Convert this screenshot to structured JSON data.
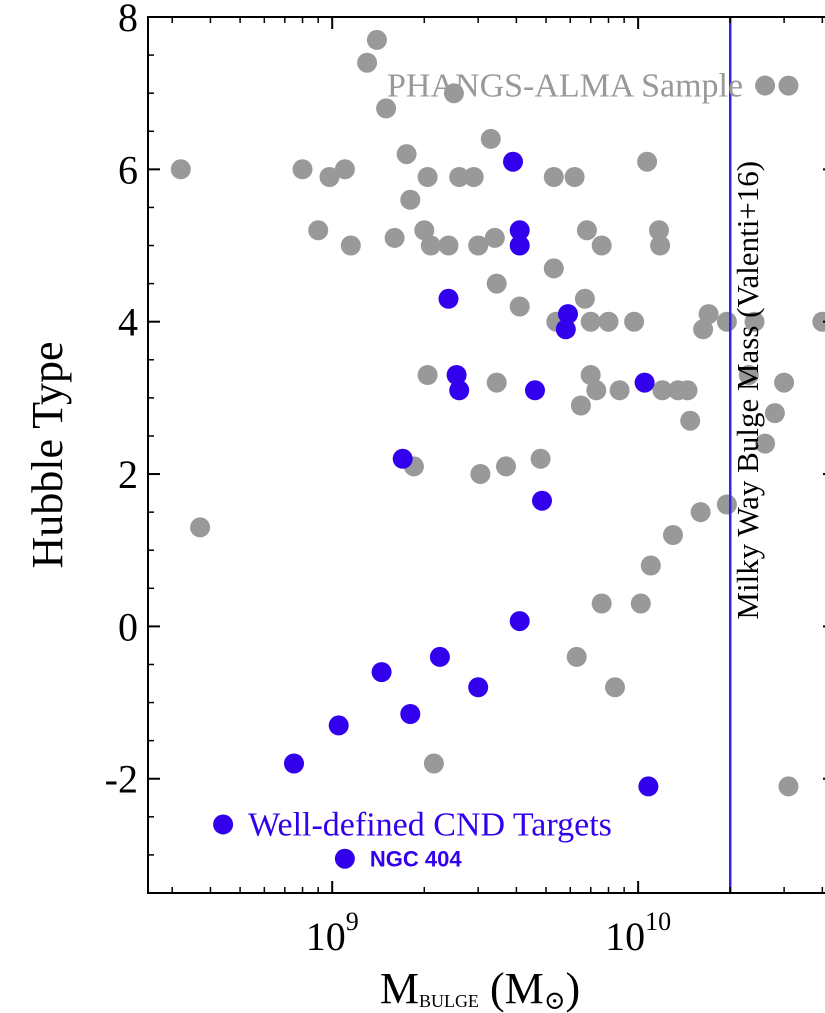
{
  "chart_data": {
    "type": "scatter",
    "xscale": "log",
    "xlim": [
      250000000.0,
      44000000000.0
    ],
    "ylim": [
      -3.5,
      8
    ],
    "xlabel": {
      "main": "M",
      "sub": "BULGE",
      "unit_open": " (M",
      "unit_sub": "⊙",
      "unit_close": ")"
    },
    "ylabel": "Hubble Type",
    "x_ticks": [
      {
        "value": 1000000000.0,
        "base": "10",
        "exp": "9"
      },
      {
        "value": 10000000000.0,
        "base": "10",
        "exp": "10"
      }
    ],
    "y_ticks": [
      -2,
      0,
      2,
      4,
      6,
      8
    ],
    "y_tick_labels": [
      "-2",
      "0",
      "2",
      "4",
      "6",
      "8"
    ],
    "grid": false,
    "colors": {
      "phangs": "#999999",
      "cnd": "#3300ee",
      "milky_way_line": "#3322ee"
    },
    "reference_line": {
      "x": 20000000000.0,
      "label": "Milky Way Bulge Mass (Valenti+16)"
    },
    "legend": [
      {
        "label": "PHANGS-ALMA Sample",
        "color": "#999999",
        "style": "serif",
        "x": 26000000000.0,
        "y": 7.1
      },
      {
        "label": "Well-defined CND Targets",
        "color": "#3300ee",
        "style": "serif",
        "x": 440000000.0,
        "y": -2.6
      },
      {
        "label": "NGC 404",
        "color": "#3300ee",
        "style": "bold",
        "x": 1100000000.0,
        "y": -3.05
      }
    ],
    "series": [
      {
        "name": "PHANGS-ALMA Sample",
        "color": "#999999",
        "points": [
          [
            320000000.0,
            6.0
          ],
          [
            370000000.0,
            1.3
          ],
          [
            800000000.0,
            6.0
          ],
          [
            900000000.0,
            5.2
          ],
          [
            980000000.0,
            5.9
          ],
          [
            1100000000.0,
            6.0
          ],
          [
            1150000000.0,
            5.0
          ],
          [
            1300000000.0,
            7.4
          ],
          [
            1400000000.0,
            7.7
          ],
          [
            1500000000.0,
            6.8
          ],
          [
            1600000000.0,
            5.1
          ],
          [
            1750000000.0,
            6.2
          ],
          [
            1800000000.0,
            5.6
          ],
          [
            1850000000.0,
            2.1
          ],
          [
            2000000000.0,
            5.2
          ],
          [
            2050000000.0,
            5.9
          ],
          [
            2050000000.0,
            3.3
          ],
          [
            2100000000.0,
            5.0
          ],
          [
            2150000000.0,
            -1.8
          ],
          [
            2400000000.0,
            5.0
          ],
          [
            2500000000.0,
            7.0
          ],
          [
            2600000000.0,
            5.9
          ],
          [
            2900000000.0,
            5.9
          ],
          [
            3000000000.0,
            5.0
          ],
          [
            3050000000.0,
            2.0
          ],
          [
            3300000000.0,
            6.4
          ],
          [
            3400000000.0,
            5.1
          ],
          [
            3450000000.0,
            4.5
          ],
          [
            3450000000.0,
            3.2
          ],
          [
            3700000000.0,
            2.1
          ],
          [
            4100000000.0,
            4.2
          ],
          [
            4800000000.0,
            2.2
          ],
          [
            5300000000.0,
            5.9
          ],
          [
            5300000000.0,
            4.7
          ],
          [
            5400000000.0,
            4.0
          ],
          [
            6200000000.0,
            5.9
          ],
          [
            6300000000.0,
            -0.4
          ],
          [
            6500000000.0,
            2.9
          ],
          [
            6700000000.0,
            4.3
          ],
          [
            6800000000.0,
            5.2
          ],
          [
            7000000000.0,
            3.3
          ],
          [
            7000000000.0,
            4.0
          ],
          [
            7300000000.0,
            3.1
          ],
          [
            7600000000.0,
            0.3
          ],
          [
            7600000000.0,
            5.0
          ],
          [
            8000000000.0,
            4.0
          ],
          [
            8400000000.0,
            -0.8
          ],
          [
            8700000000.0,
            3.1
          ],
          [
            9700000000.0,
            4.0
          ],
          [
            10200000000.0,
            0.3
          ],
          [
            10700000000.0,
            6.1
          ],
          [
            11000000000.0,
            0.8
          ],
          [
            11700000000.0,
            5.2
          ],
          [
            11800000000.0,
            5.0
          ],
          [
            12000000000.0,
            3.1
          ],
          [
            13000000000.0,
            1.2
          ],
          [
            13500000000.0,
            3.1
          ],
          [
            14500000000.0,
            3.1
          ],
          [
            14800000000.0,
            2.7
          ],
          [
            16000000000.0,
            1.5
          ],
          [
            16300000000.0,
            3.9
          ],
          [
            17000000000.0,
            4.1
          ],
          [
            19500000000.0,
            1.6
          ],
          [
            19500000000.0,
            4.0
          ],
          [
            23000000000.0,
            3.3
          ],
          [
            24000000000.0,
            4.0
          ],
          [
            26000000000.0,
            2.4
          ],
          [
            28000000000.0,
            2.8
          ],
          [
            30000000000.0,
            3.2
          ],
          [
            31000000000.0,
            -2.1
          ],
          [
            31000000000.0,
            7.1
          ],
          [
            40000000000.0,
            4.0
          ]
        ]
      },
      {
        "name": "Well-defined CND Targets",
        "color": "#3300ee",
        "points": [
          [
            750000000.0,
            -1.8
          ],
          [
            1050000000.0,
            -1.3
          ],
          [
            1450000000.0,
            -0.6
          ],
          [
            1700000000.0,
            2.2
          ],
          [
            1800000000.0,
            -1.15
          ],
          [
            2250000000.0,
            -0.4
          ],
          [
            2400000000.0,
            4.3
          ],
          [
            2550000000.0,
            3.3
          ],
          [
            2600000000.0,
            3.1
          ],
          [
            3000000000.0,
            -0.8
          ],
          [
            3900000000.0,
            6.1
          ],
          [
            4100000000.0,
            0.07
          ],
          [
            4100000000.0,
            5.2
          ],
          [
            4100000000.0,
            5.0
          ],
          [
            4600000000.0,
            3.1
          ],
          [
            4850000000.0,
            1.65
          ],
          [
            5800000000.0,
            3.9
          ],
          [
            5900000000.0,
            4.1
          ],
          [
            10500000000.0,
            3.2
          ],
          [
            10800000000.0,
            -2.1
          ]
        ]
      }
    ]
  }
}
